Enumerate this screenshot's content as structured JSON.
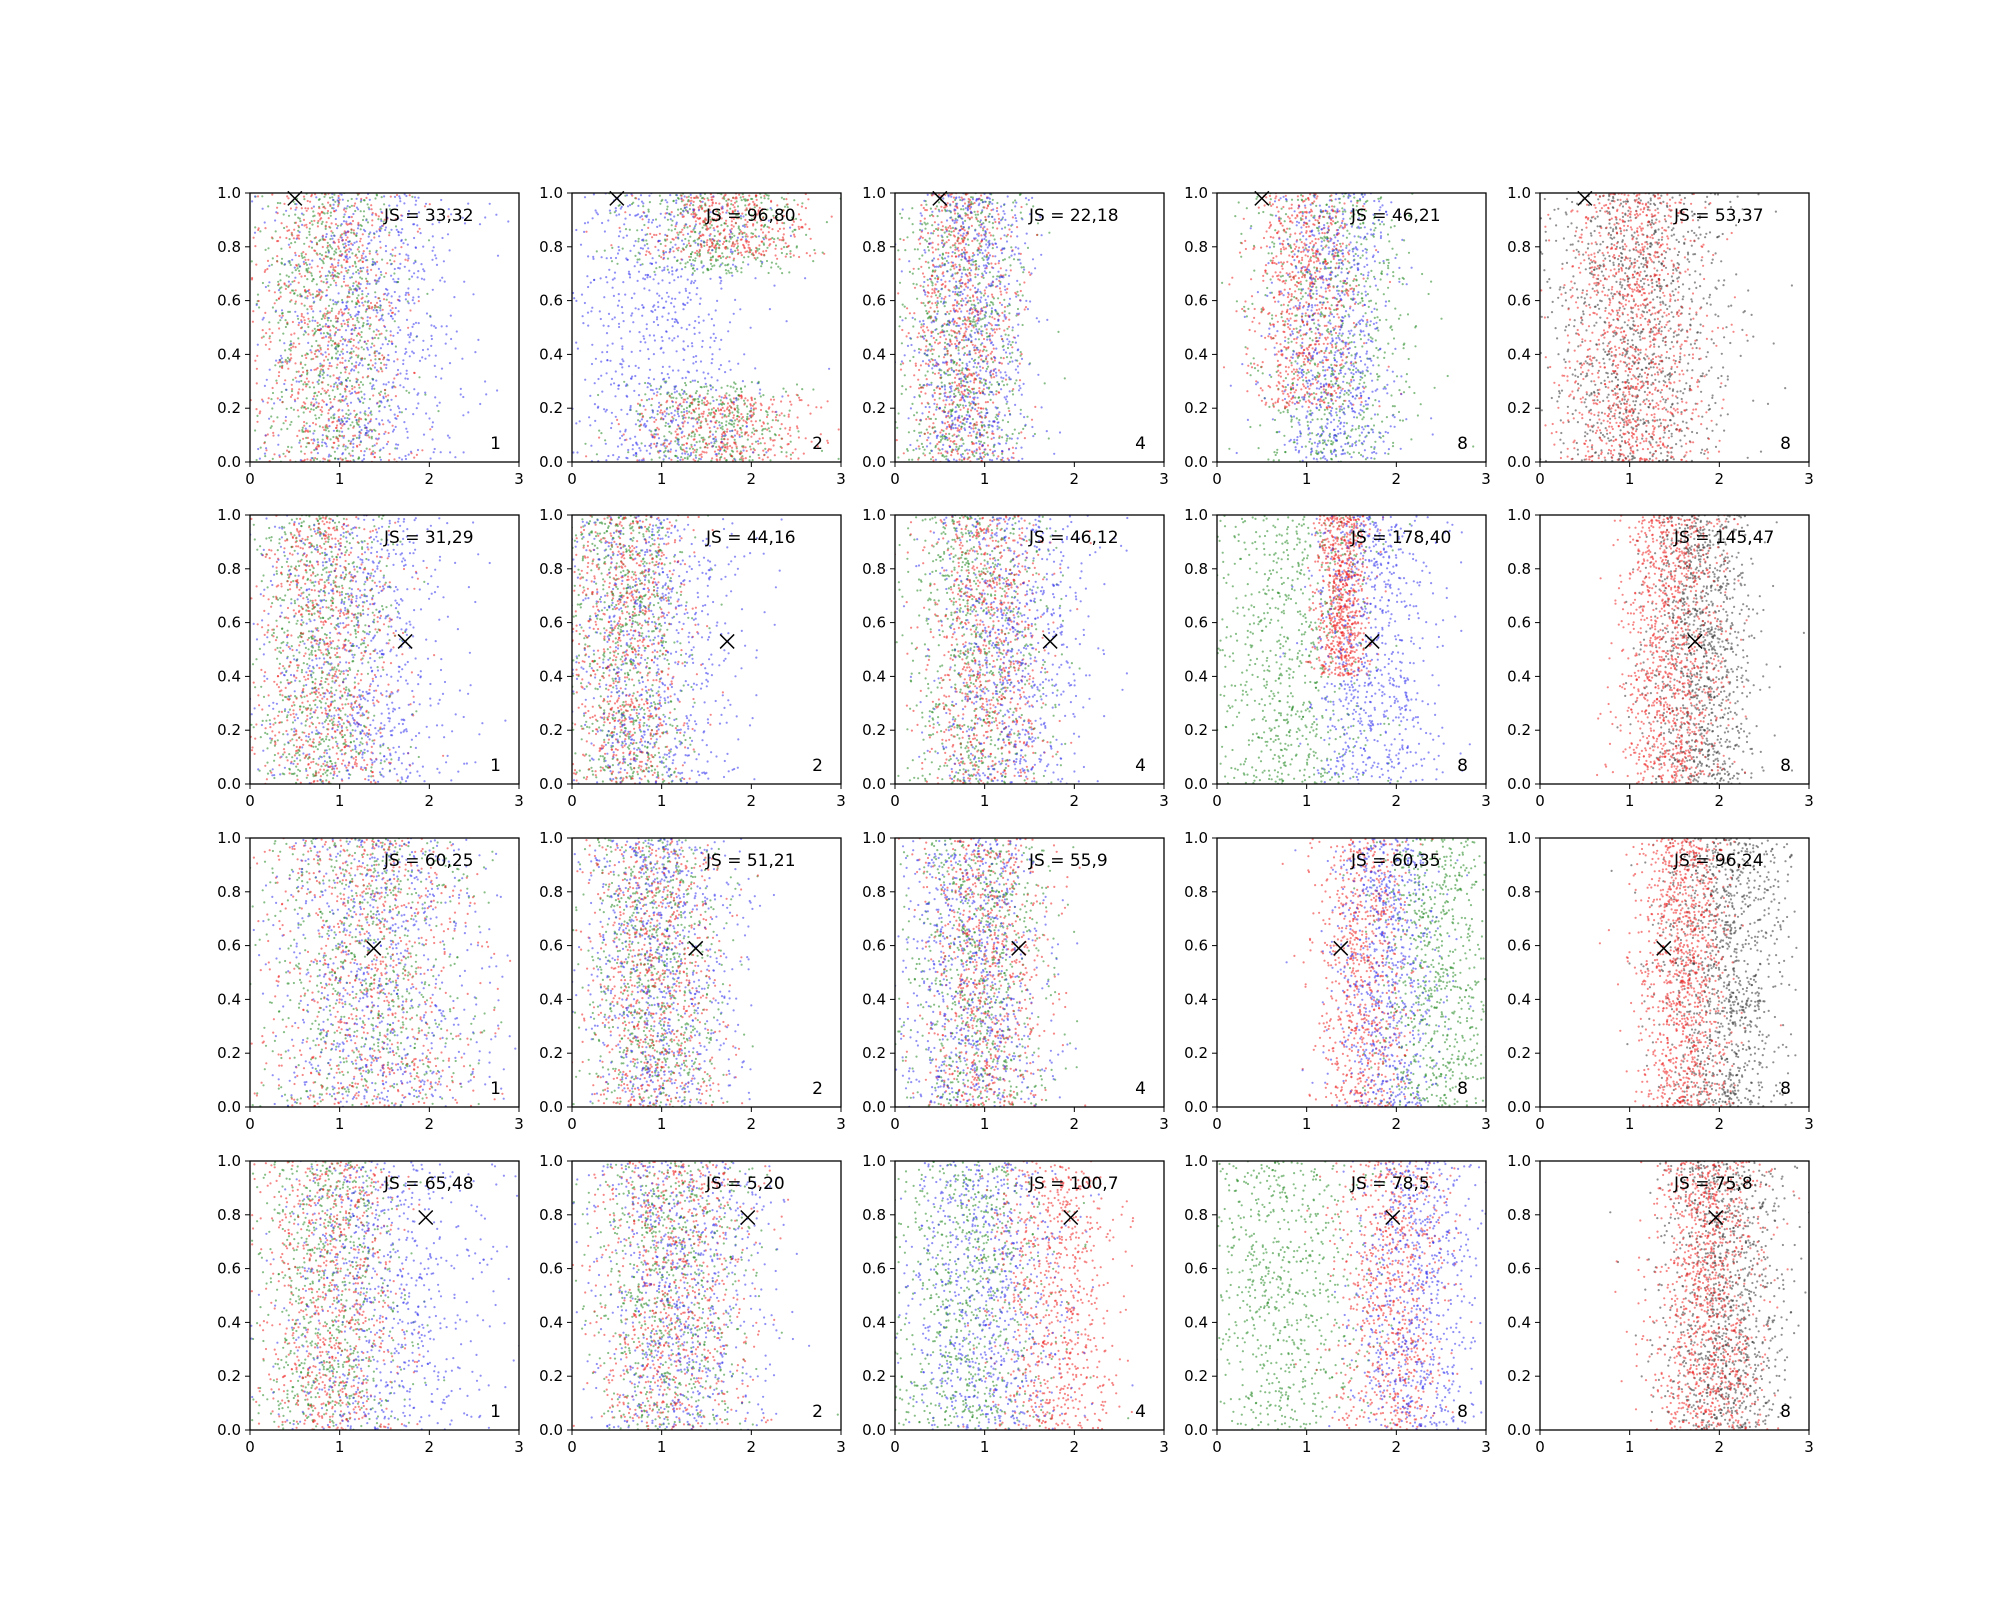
{
  "colors": {
    "blue": "#3333ee",
    "red": "#ee2222",
    "green": "#228822",
    "black": "#333333",
    "marker": "#000000"
  },
  "chart_data": {
    "type": "scatter",
    "rows": 4,
    "cols": 5,
    "xlim": [
      0,
      3
    ],
    "ylim": [
      0,
      1
    ],
    "xticks": [
      "0",
      "1",
      "2",
      "3"
    ],
    "yticks": [
      "0.0",
      "0.2",
      "0.4",
      "0.6",
      "0.8",
      "1.0"
    ],
    "grid": false,
    "legend": "none",
    "row_markers": [
      {
        "x": 0.5,
        "y": 0.98
      },
      {
        "x": 1.73,
        "y": 0.53
      },
      {
        "x": 1.38,
        "y": 0.59
      },
      {
        "x": 1.96,
        "y": 0.79
      }
    ],
    "panels": [
      {
        "row": 0,
        "col": 0,
        "js": "JS = 33,32",
        "n": "1",
        "point_colors": [
          "blue",
          "red",
          "green"
        ]
      },
      {
        "row": 0,
        "col": 1,
        "js": "JS = 96,80",
        "n": "2",
        "point_colors": [
          "blue",
          "red",
          "green"
        ]
      },
      {
        "row": 0,
        "col": 2,
        "js": "JS = 22,18",
        "n": "4",
        "point_colors": [
          "blue",
          "red",
          "green"
        ]
      },
      {
        "row": 0,
        "col": 3,
        "js": "JS = 46,21",
        "n": "8",
        "point_colors": [
          "blue",
          "red",
          "green"
        ]
      },
      {
        "row": 0,
        "col": 4,
        "js": "JS = 53,37",
        "n": "8",
        "point_colors": [
          "red",
          "black"
        ]
      },
      {
        "row": 1,
        "col": 0,
        "js": "JS = 31,29",
        "n": "1",
        "point_colors": [
          "blue",
          "red",
          "green"
        ]
      },
      {
        "row": 1,
        "col": 1,
        "js": "JS = 44,16",
        "n": "2",
        "point_colors": [
          "blue",
          "red",
          "green"
        ]
      },
      {
        "row": 1,
        "col": 2,
        "js": "JS = 46,12",
        "n": "4",
        "point_colors": [
          "blue",
          "red",
          "green"
        ]
      },
      {
        "row": 1,
        "col": 3,
        "js": "JS = 178,40",
        "n": "8",
        "point_colors": [
          "blue",
          "red",
          "green"
        ]
      },
      {
        "row": 1,
        "col": 4,
        "js": "JS = 145,47",
        "n": "8",
        "point_colors": [
          "red",
          "black"
        ]
      },
      {
        "row": 2,
        "col": 0,
        "js": "JS = 60,25",
        "n": "1",
        "point_colors": [
          "blue",
          "red",
          "green"
        ]
      },
      {
        "row": 2,
        "col": 1,
        "js": "JS = 51,21",
        "n": "2",
        "point_colors": [
          "blue",
          "red",
          "green"
        ]
      },
      {
        "row": 2,
        "col": 2,
        "js": "JS = 55,9",
        "n": "4",
        "point_colors": [
          "blue",
          "red",
          "green"
        ]
      },
      {
        "row": 2,
        "col": 3,
        "js": "JS = 60,35",
        "n": "8",
        "point_colors": [
          "blue",
          "red",
          "green"
        ]
      },
      {
        "row": 2,
        "col": 4,
        "js": "JS = 96,24",
        "n": "8",
        "point_colors": [
          "red",
          "black"
        ]
      },
      {
        "row": 3,
        "col": 0,
        "js": "JS = 65,48",
        "n": "1",
        "point_colors": [
          "blue",
          "red",
          "green"
        ]
      },
      {
        "row": 3,
        "col": 1,
        "js": "JS = 5,20",
        "n": "2",
        "point_colors": [
          "blue",
          "red",
          "green"
        ]
      },
      {
        "row": 3,
        "col": 2,
        "js": "JS = 100,7",
        "n": "4",
        "point_colors": [
          "blue",
          "red",
          "green"
        ]
      },
      {
        "row": 3,
        "col": 3,
        "js": "JS = 78,5",
        "n": "8",
        "point_colors": [
          "blue",
          "red",
          "green"
        ]
      },
      {
        "row": 3,
        "col": 4,
        "js": "JS = 75,8",
        "n": "8",
        "point_colors": [
          "red",
          "black"
        ]
      }
    ]
  }
}
